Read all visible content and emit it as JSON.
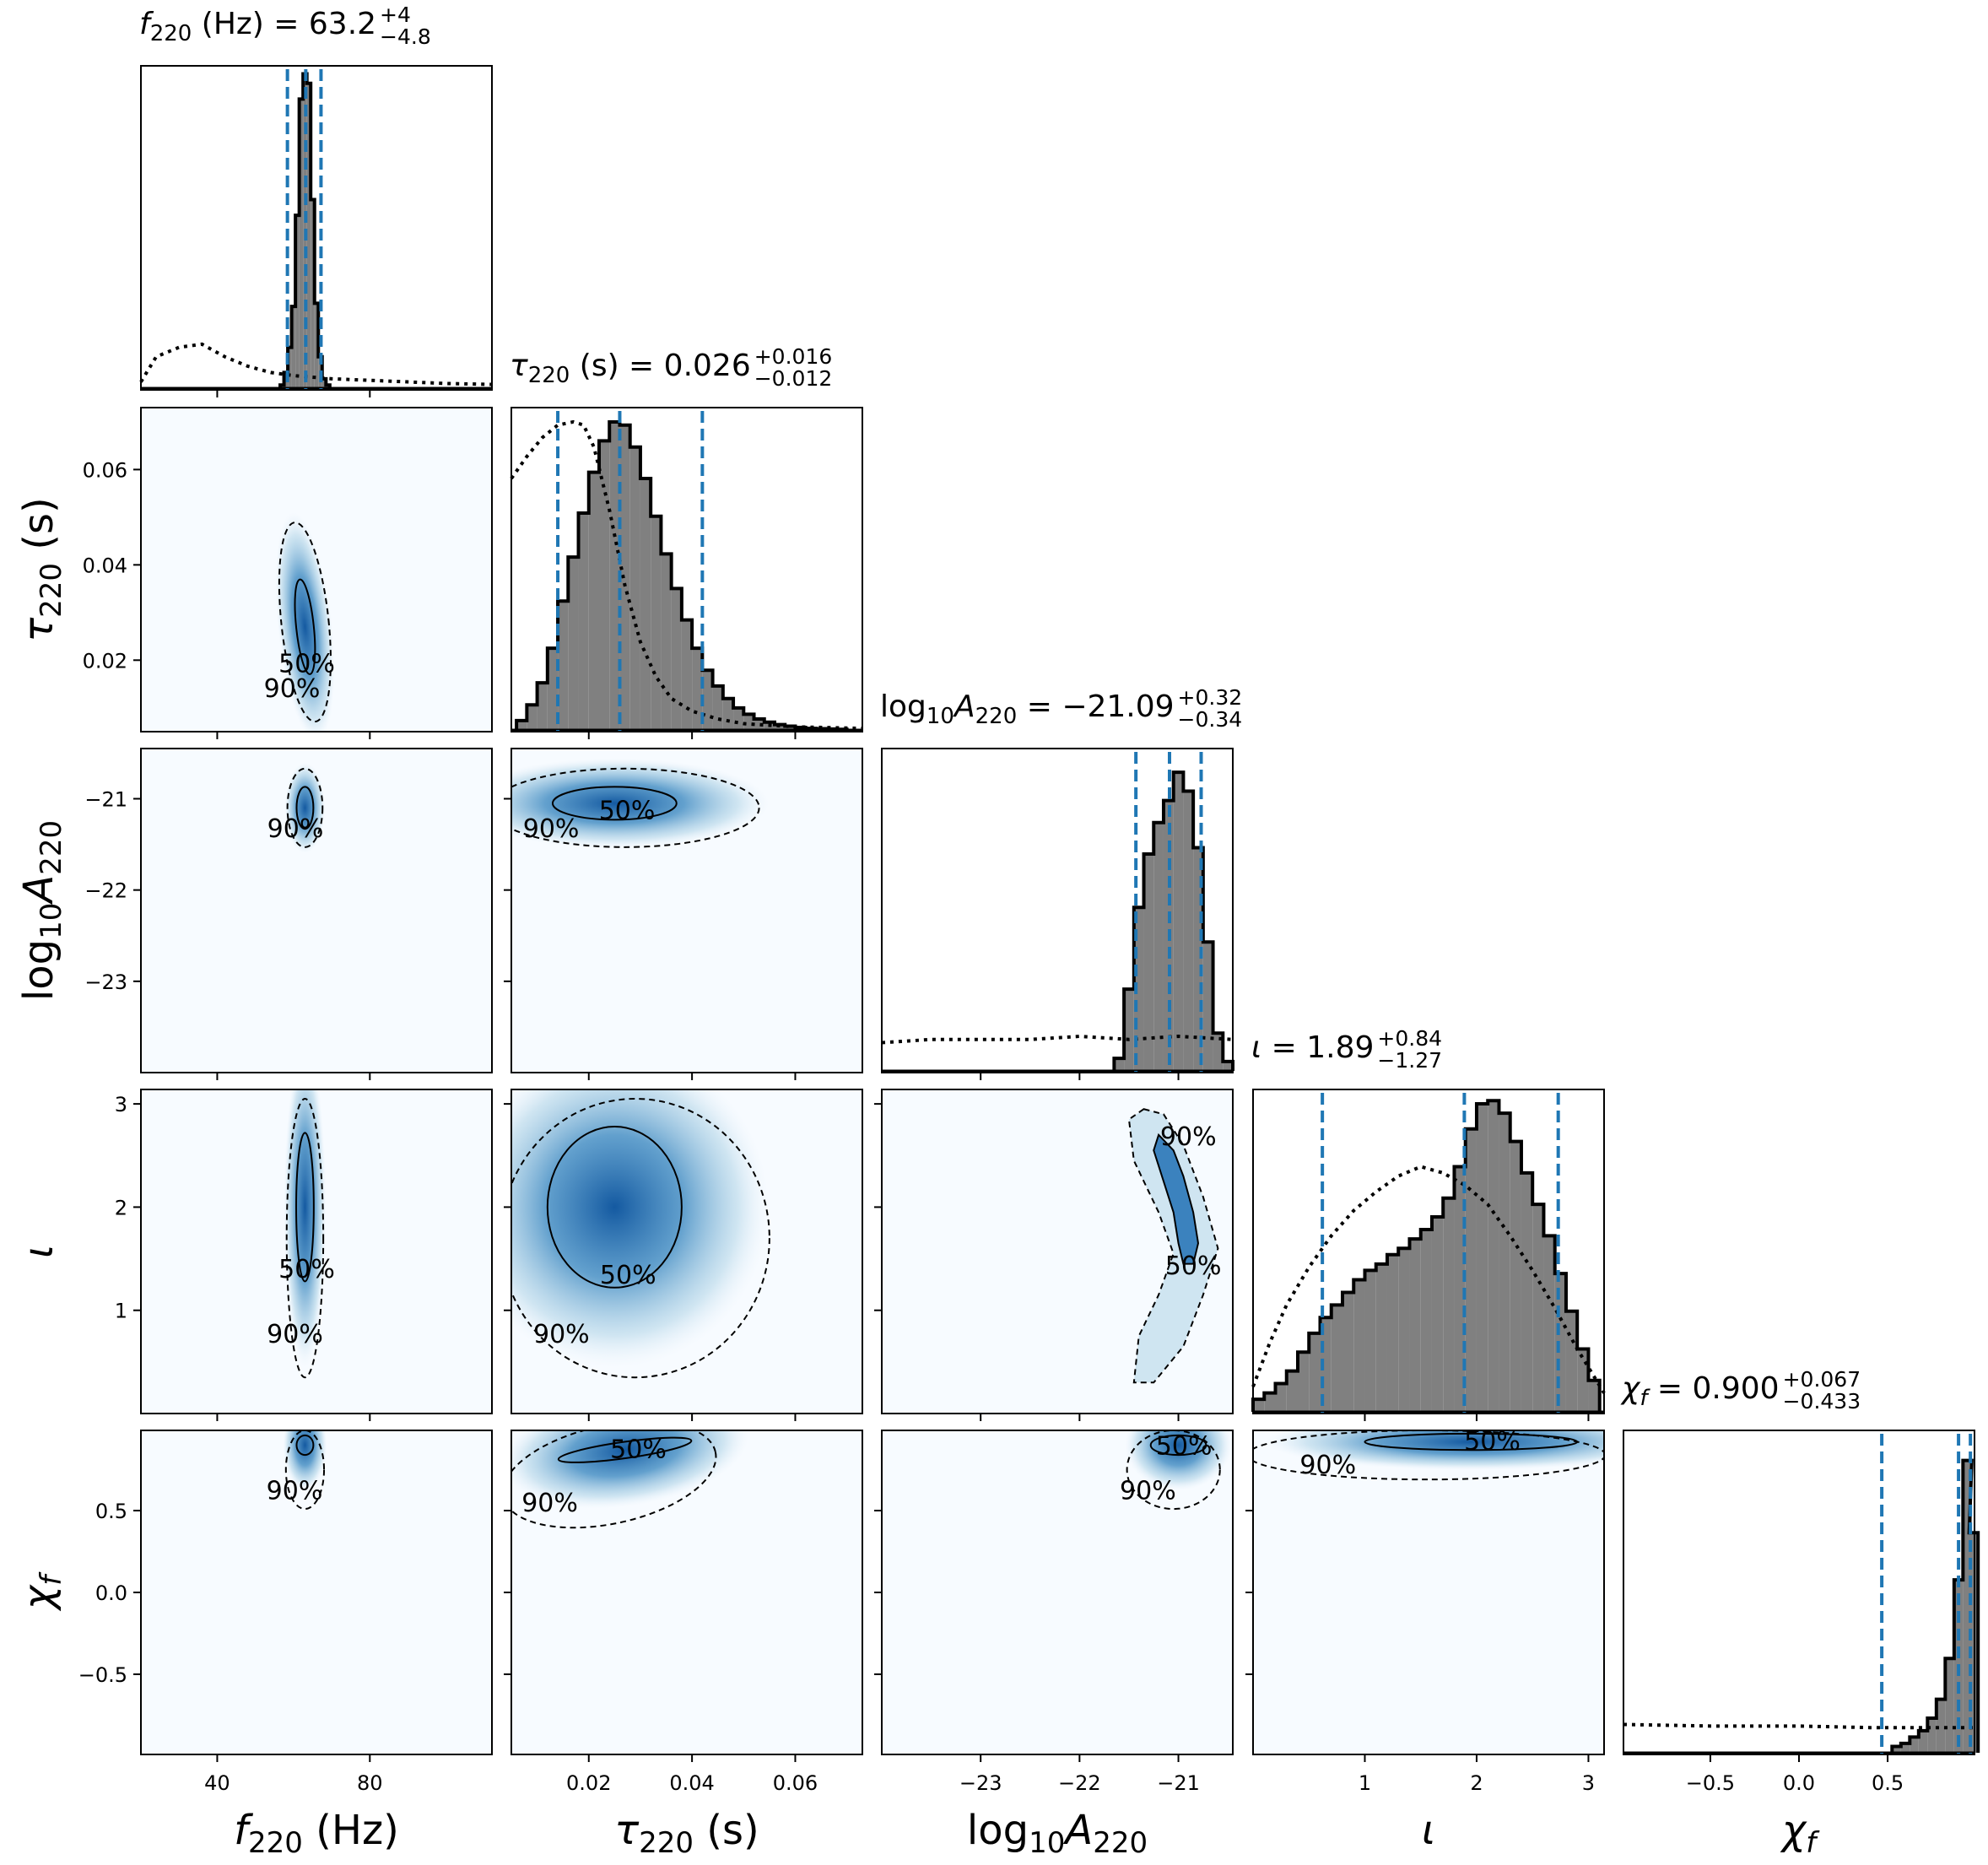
{
  "chart_data": {
    "type": "corner",
    "colors": {
      "histogram_fill": "#808080",
      "histogram_edge": "#000000",
      "quantile_line": "#1f77b4",
      "density_low": "#f7fbff",
      "density_high": "#08519c"
    },
    "params": [
      {
        "key": "f220",
        "symbol": "f",
        "sub": "220",
        "unit": " (Hz)",
        "range": [
          20,
          112
        ],
        "ticks": [
          40,
          80
        ],
        "tick_labels": [
          "40",
          "80"
        ],
        "median": 63.2,
        "q_lo": 58.4,
        "q_hi": 67.2,
        "title_value": "63.2",
        "title_plus": "+4",
        "title_minus": "−4.8",
        "axis_label": "f220 (Hz)"
      },
      {
        "key": "tau220",
        "symbol": "τ",
        "sub": "220",
        "unit": " (s)",
        "range": [
          0.005,
          0.073
        ],
        "ticks": [
          0.02,
          0.04,
          0.06
        ],
        "tick_labels": [
          "0.02",
          "0.04",
          "0.06"
        ],
        "median": 0.026,
        "q_lo": 0.014,
        "q_hi": 0.042,
        "title_value": "0.026",
        "title_plus": "+0.016",
        "title_minus": "−0.012",
        "axis_label": "τ220 (s)"
      },
      {
        "key": "log10A220",
        "symbol": "A",
        "sub": "220",
        "unit": "",
        "range": [
          -24.0,
          -20.45
        ],
        "ticks": [
          -23,
          -22,
          -21
        ],
        "tick_labels": [
          "−23",
          "−22",
          "−21"
        ],
        "median": -21.09,
        "q_lo": -21.43,
        "q_hi": -20.77,
        "title_value": "−21.09",
        "title_plus": "+0.32",
        "title_minus": "−0.34",
        "axis_label": "log10A220"
      },
      {
        "key": "iota",
        "symbol": "ι",
        "sub": "",
        "unit": "",
        "range": [
          0.0,
          3.14
        ],
        "ticks": [
          1,
          2,
          3
        ],
        "tick_labels": [
          "1",
          "2",
          "3"
        ],
        "median": 1.89,
        "q_lo": 0.62,
        "q_hi": 2.73,
        "title_value": "1.89",
        "title_plus": "+0.84",
        "title_minus": "−1.27",
        "axis_label": "ι"
      },
      {
        "key": "chif",
        "symbol": "χ",
        "sub": "f",
        "unit": "",
        "range": [
          -0.99,
          0.99
        ],
        "ticks": [
          -0.5,
          0.0,
          0.5
        ],
        "tick_labels": [
          "−0.5",
          "0.0",
          "0.5"
        ],
        "median": 0.9,
        "q_lo": 0.467,
        "q_hi": 0.967,
        "title_value": "0.900",
        "title_plus": "+0.067",
        "title_minus": "−0.433",
        "axis_label": "χf"
      }
    ],
    "y_ticks": {
      "tau220": {
        "values": [
          0.02,
          0.04,
          0.06
        ],
        "labels": [
          "0.02",
          "0.04",
          "0.06"
        ]
      },
      "log10A220": {
        "values": [
          -23,
          -22,
          -21
        ],
        "labels": [
          "−23",
          "−22",
          "−21"
        ]
      },
      "iota": {
        "values": [
          1,
          2,
          3
        ],
        "labels": [
          "1",
          "2",
          "3"
        ]
      },
      "chif": {
        "values": [
          -0.5,
          0.0,
          0.5
        ],
        "labels": [
          "−0.5",
          "0.0",
          "0.5"
        ]
      }
    },
    "posterior_hist": {
      "f220": {
        "bins": [
          [
            57,
            0.01
          ],
          [
            58,
            0.05
          ],
          [
            59,
            0.13
          ],
          [
            60,
            0.26
          ],
          [
            61,
            0.55
          ],
          [
            62,
            0.92
          ],
          [
            63,
            1.0
          ],
          [
            64,
            0.97
          ],
          [
            65,
            0.6
          ],
          [
            66,
            0.27
          ],
          [
            67,
            0.1
          ],
          [
            68,
            0.03
          ],
          [
            69,
            0.01
          ]
        ]
      },
      "tau220": {
        "bins": [
          [
            0.007,
            0.03
          ],
          [
            0.009,
            0.08
          ],
          [
            0.011,
            0.15
          ],
          [
            0.013,
            0.26
          ],
          [
            0.015,
            0.41
          ],
          [
            0.017,
            0.55
          ],
          [
            0.019,
            0.69
          ],
          [
            0.021,
            0.82
          ],
          [
            0.023,
            0.92
          ],
          [
            0.025,
            0.98
          ],
          [
            0.027,
            0.97
          ],
          [
            0.029,
            0.9
          ],
          [
            0.031,
            0.8
          ],
          [
            0.033,
            0.68
          ],
          [
            0.035,
            0.56
          ],
          [
            0.037,
            0.45
          ],
          [
            0.039,
            0.35
          ],
          [
            0.041,
            0.26
          ],
          [
            0.043,
            0.19
          ],
          [
            0.045,
            0.14
          ],
          [
            0.047,
            0.1
          ],
          [
            0.049,
            0.07
          ],
          [
            0.051,
            0.05
          ],
          [
            0.053,
            0.035
          ],
          [
            0.055,
            0.025
          ],
          [
            0.057,
            0.017
          ],
          [
            0.059,
            0.012
          ],
          [
            0.061,
            0.008
          ],
          [
            0.063,
            0.005
          ],
          [
            0.065,
            0.004
          ],
          [
            0.067,
            0.003
          ],
          [
            0.069,
            0.002
          ]
        ]
      },
      "log10A220": {
        "bins": [
          [
            -21.6,
            0.04
          ],
          [
            -21.5,
            0.26
          ],
          [
            -21.4,
            0.52
          ],
          [
            -21.3,
            0.69
          ],
          [
            -21.2,
            0.79
          ],
          [
            -21.1,
            0.86
          ],
          [
            -21.0,
            0.95
          ],
          [
            -20.9,
            0.89
          ],
          [
            -20.8,
            0.71
          ],
          [
            -20.7,
            0.41
          ],
          [
            -20.6,
            0.12
          ],
          [
            -20.5,
            0.03
          ]
        ]
      },
      "iota": {
        "bins": [
          [
            0.05,
            0.04
          ],
          [
            0.15,
            0.06
          ],
          [
            0.25,
            0.09
          ],
          [
            0.35,
            0.13
          ],
          [
            0.45,
            0.19
          ],
          [
            0.55,
            0.25
          ],
          [
            0.65,
            0.3
          ],
          [
            0.75,
            0.34
          ],
          [
            0.85,
            0.38
          ],
          [
            0.95,
            0.42
          ],
          [
            1.05,
            0.45
          ],
          [
            1.15,
            0.47
          ],
          [
            1.25,
            0.5
          ],
          [
            1.35,
            0.52
          ],
          [
            1.45,
            0.55
          ],
          [
            1.55,
            0.58
          ],
          [
            1.65,
            0.62
          ],
          [
            1.75,
            0.68
          ],
          [
            1.85,
            0.78
          ],
          [
            1.95,
            0.9
          ],
          [
            2.05,
            0.98
          ],
          [
            2.15,
            0.99
          ],
          [
            2.25,
            0.95
          ],
          [
            2.35,
            0.86
          ],
          [
            2.45,
            0.76
          ],
          [
            2.55,
            0.66
          ],
          [
            2.65,
            0.56
          ],
          [
            2.75,
            0.44
          ],
          [
            2.85,
            0.32
          ],
          [
            2.95,
            0.2
          ],
          [
            3.05,
            0.1
          ]
        ]
      },
      "chif": {
        "bins": [
          [
            0.55,
            0.02
          ],
          [
            0.6,
            0.03
          ],
          [
            0.65,
            0.05
          ],
          [
            0.7,
            0.07
          ],
          [
            0.75,
            0.11
          ],
          [
            0.8,
            0.17
          ],
          [
            0.85,
            0.3
          ],
          [
            0.9,
            0.55
          ],
          [
            0.95,
            0.93
          ],
          [
            0.985,
            0.7
          ]
        ]
      }
    },
    "prior_hist": {
      "f220": {
        "points": [
          [
            20,
            0.02
          ],
          [
            24,
            0.1
          ],
          [
            30,
            0.13
          ],
          [
            36,
            0.14
          ],
          [
            42,
            0.1
          ],
          [
            48,
            0.07
          ],
          [
            54,
            0.05
          ],
          [
            60,
            0.04
          ],
          [
            70,
            0.03
          ],
          [
            80,
            0.025
          ],
          [
            90,
            0.02
          ],
          [
            100,
            0.015
          ],
          [
            112,
            0.012
          ]
        ]
      },
      "tau220": {
        "points": [
          [
            0.005,
            0.8
          ],
          [
            0.008,
            0.87
          ],
          [
            0.011,
            0.93
          ],
          [
            0.014,
            0.97
          ],
          [
            0.017,
            0.98
          ],
          [
            0.019,
            0.97
          ],
          [
            0.021,
            0.9
          ],
          [
            0.024,
            0.7
          ],
          [
            0.027,
            0.46
          ],
          [
            0.03,
            0.28
          ],
          [
            0.033,
            0.17
          ],
          [
            0.036,
            0.1
          ],
          [
            0.04,
            0.06
          ],
          [
            0.045,
            0.035
          ],
          [
            0.05,
            0.02
          ],
          [
            0.06,
            0.01
          ],
          [
            0.073,
            0.005
          ]
        ]
      },
      "log10A220": {
        "points": [
          [
            -24.0,
            0.09
          ],
          [
            -23.5,
            0.1
          ],
          [
            -23.0,
            0.1
          ],
          [
            -22.5,
            0.1
          ],
          [
            -22.0,
            0.11
          ],
          [
            -21.5,
            0.1
          ],
          [
            -21.0,
            0.11
          ],
          [
            -20.45,
            0.1
          ]
        ]
      },
      "iota": {
        "points": [
          [
            0.0,
            0.08
          ],
          [
            0.15,
            0.22
          ],
          [
            0.3,
            0.34
          ],
          [
            0.5,
            0.46
          ],
          [
            0.7,
            0.56
          ],
          [
            0.9,
            0.64
          ],
          [
            1.1,
            0.7
          ],
          [
            1.3,
            0.75
          ],
          [
            1.5,
            0.78
          ],
          [
            1.7,
            0.76
          ],
          [
            1.9,
            0.72
          ],
          [
            2.1,
            0.66
          ],
          [
            2.3,
            0.56
          ],
          [
            2.5,
            0.45
          ],
          [
            2.7,
            0.33
          ],
          [
            2.9,
            0.2
          ],
          [
            3.14,
            0.06
          ]
        ]
      },
      "chif": {
        "points": [
          [
            -0.99,
            0.09
          ],
          [
            -0.5,
            0.085
          ],
          [
            0.0,
            0.085
          ],
          [
            0.4,
            0.08
          ],
          [
            0.7,
            0.08
          ],
          [
            0.99,
            0.08
          ]
        ]
      }
    },
    "contours": [
      {
        "row": 1,
        "col": 0,
        "c50": {
          "cx": 63,
          "cy": 0.027,
          "rx": 2.3,
          "ry": 0.01,
          "rot": -6
        },
        "c90": {
          "cx": 63,
          "cy": 0.028,
          "rx": 6.2,
          "ry": 0.021,
          "rot": -6
        },
        "label50": "50%",
        "label90": "90%"
      },
      {
        "row": 2,
        "col": 0,
        "c50": {
          "cx": 63,
          "cy": -21.1,
          "rx": 2.2,
          "ry": 0.23,
          "rot": 0
        },
        "c90": {
          "cx": 63,
          "cy": -21.1,
          "rx": 4.6,
          "ry": 0.43,
          "rot": 0
        },
        "label50": "",
        "label90": "90%"
      },
      {
        "row": 2,
        "col": 1,
        "c50": {
          "cx": 0.025,
          "cy": -21.05,
          "rx": 0.012,
          "ry": 0.18,
          "rot": 0
        },
        "c90": {
          "cx": 0.027,
          "cy": -21.1,
          "rx": 0.026,
          "ry": 0.43,
          "rot": 0
        },
        "label50": "50%",
        "label90": "90%"
      },
      {
        "row": 3,
        "col": 0,
        "c50": {
          "cx": 63,
          "cy": 2.0,
          "rx": 2.3,
          "ry": 0.72,
          "rot": 0
        },
        "c90": {
          "cx": 63,
          "cy": 1.7,
          "rx": 4.8,
          "ry": 1.35,
          "rot": 0
        },
        "label50": "50%",
        "label90": "90%"
      },
      {
        "row": 3,
        "col": 1,
        "c50": {
          "cx": 0.025,
          "cy": 2.0,
          "rx": 0.013,
          "ry": 0.78,
          "rot": 0
        },
        "c90": {
          "cx": 0.029,
          "cy": 1.7,
          "rx": 0.026,
          "ry": 1.35,
          "rot": 0
        },
        "label50": "50%",
        "label90": "90%"
      },
      {
        "row": 4,
        "col": 0,
        "c50": {
          "cx": 63,
          "cy": 0.9,
          "rx": 2.2,
          "ry": 0.06,
          "rot": 0
        },
        "c90": {
          "cx": 63,
          "cy": 0.75,
          "rx": 5.0,
          "ry": 0.24,
          "rot": 0
        },
        "label50": "",
        "label90": "90%"
      },
      {
        "row": 4,
        "col": 1,
        "c50": {
          "cx": 0.027,
          "cy": 0.87,
          "rx": 0.013,
          "ry": 0.05,
          "rot": -8
        },
        "c90": {
          "cx": 0.024,
          "cy": 0.72,
          "rx": 0.021,
          "ry": 0.3,
          "rot": -12
        },
        "label50": "50%",
        "label90": "90%"
      },
      {
        "row": 4,
        "col": 2,
        "c50": {
          "cx": -21.0,
          "cy": 0.9,
          "rx": 0.28,
          "ry": 0.06,
          "rot": 0
        },
        "c90": {
          "cx": -21.05,
          "cy": 0.75,
          "rx": 0.47,
          "ry": 0.24,
          "rot": 0
        },
        "label50": "50%",
        "label90": "90%"
      },
      {
        "row": 4,
        "col": 3,
        "c50": {
          "cx": 1.95,
          "cy": 0.92,
          "rx": 0.95,
          "ry": 0.05,
          "rot": 0
        },
        "c90": {
          "cx": 1.55,
          "cy": 0.84,
          "rx": 1.6,
          "ry": 0.15,
          "rot": 0
        },
        "label50": "50%",
        "label90": "90%"
      }
    ],
    "curved_contour": {
      "row": 3,
      "col": 2,
      "c50_pts": [
        [
          -21.15,
          2.65
        ],
        [
          -21.05,
          2.55
        ],
        [
          -20.95,
          2.3
        ],
        [
          -20.85,
          1.95
        ],
        [
          -20.8,
          1.65
        ],
        [
          -20.85,
          1.45
        ],
        [
          -20.95,
          1.45
        ],
        [
          -21.0,
          1.65
        ],
        [
          -21.05,
          1.95
        ],
        [
          -21.15,
          2.25
        ],
        [
          -21.25,
          2.55
        ],
        [
          -21.2,
          2.7
        ]
      ],
      "c90_pts": [
        [
          -21.35,
          2.95
        ],
        [
          -21.15,
          2.9
        ],
        [
          -20.95,
          2.6
        ],
        [
          -20.75,
          2.1
        ],
        [
          -20.6,
          1.6
        ],
        [
          -20.75,
          1.15
        ],
        [
          -20.95,
          0.65
        ],
        [
          -21.25,
          0.3
        ],
        [
          -21.45,
          0.3
        ],
        [
          -21.4,
          0.75
        ],
        [
          -21.2,
          1.15
        ],
        [
          -21.05,
          1.55
        ],
        [
          -21.2,
          1.95
        ],
        [
          -21.45,
          2.45
        ],
        [
          -21.5,
          2.85
        ]
      ],
      "label50": "50%",
      "label90": "90%"
    }
  }
}
